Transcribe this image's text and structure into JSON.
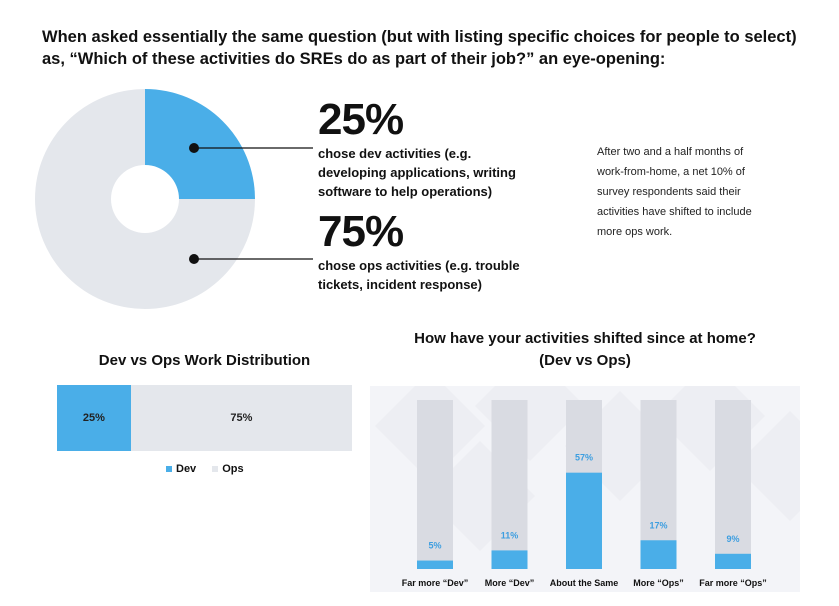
{
  "headline": {
    "line1": "When asked essentially the same question (but with listing specific choices for people to select)",
    "line2": "as, “Which of these activities do SREs do as part of their job?” an eye-opening:"
  },
  "stats": {
    "dev": {
      "pct": "25%",
      "line1": "chose dev activities (e.g.",
      "line2": "developing applications, writing",
      "line3": "software to help operations)"
    },
    "ops": {
      "pct": "75%",
      "line1": "chose ops activities (e.g. trouble",
      "line2": "tickets, incident response)"
    }
  },
  "side_note": {
    "line1": "After two and a half months of",
    "line2": "work-from-home, a net 10% of",
    "line3": "survey respondents said their",
    "line4": "activities have shifted to include",
    "line5": "more ops work."
  },
  "colors": {
    "dev": "#4aaee8",
    "ops": "#e4e7ec",
    "bar_track": "#d9dbe2",
    "panel_bg": "#f3f4f8",
    "label_blue": "#3d9ee0"
  },
  "chart_data": [
    {
      "type": "pie",
      "title": "",
      "categories": [
        "Dev",
        "Ops"
      ],
      "values": [
        25,
        75
      ]
    },
    {
      "type": "bar",
      "title": "Dev vs Ops Work Distribution",
      "categories": [
        "Dev",
        "Ops"
      ],
      "values": [
        25,
        75
      ],
      "labels": [
        "25%",
        "75%"
      ],
      "legend": {
        "position": "bottom",
        "items": [
          "Dev",
          "Ops"
        ]
      }
    },
    {
      "type": "bar",
      "title_line1": "How have your activities shifted since at home?",
      "title_line2": "(Dev vs Ops)",
      "categories": [
        "Far more “Dev”",
        "More “Dev”",
        "About the Same",
        "More “Ops”",
        "Far more “Ops”"
      ],
      "values": [
        5,
        11,
        57,
        17,
        9
      ],
      "labels": [
        "5%",
        "11%",
        "57%",
        "17%",
        "9%"
      ],
      "ylim": [
        0,
        100
      ]
    }
  ]
}
